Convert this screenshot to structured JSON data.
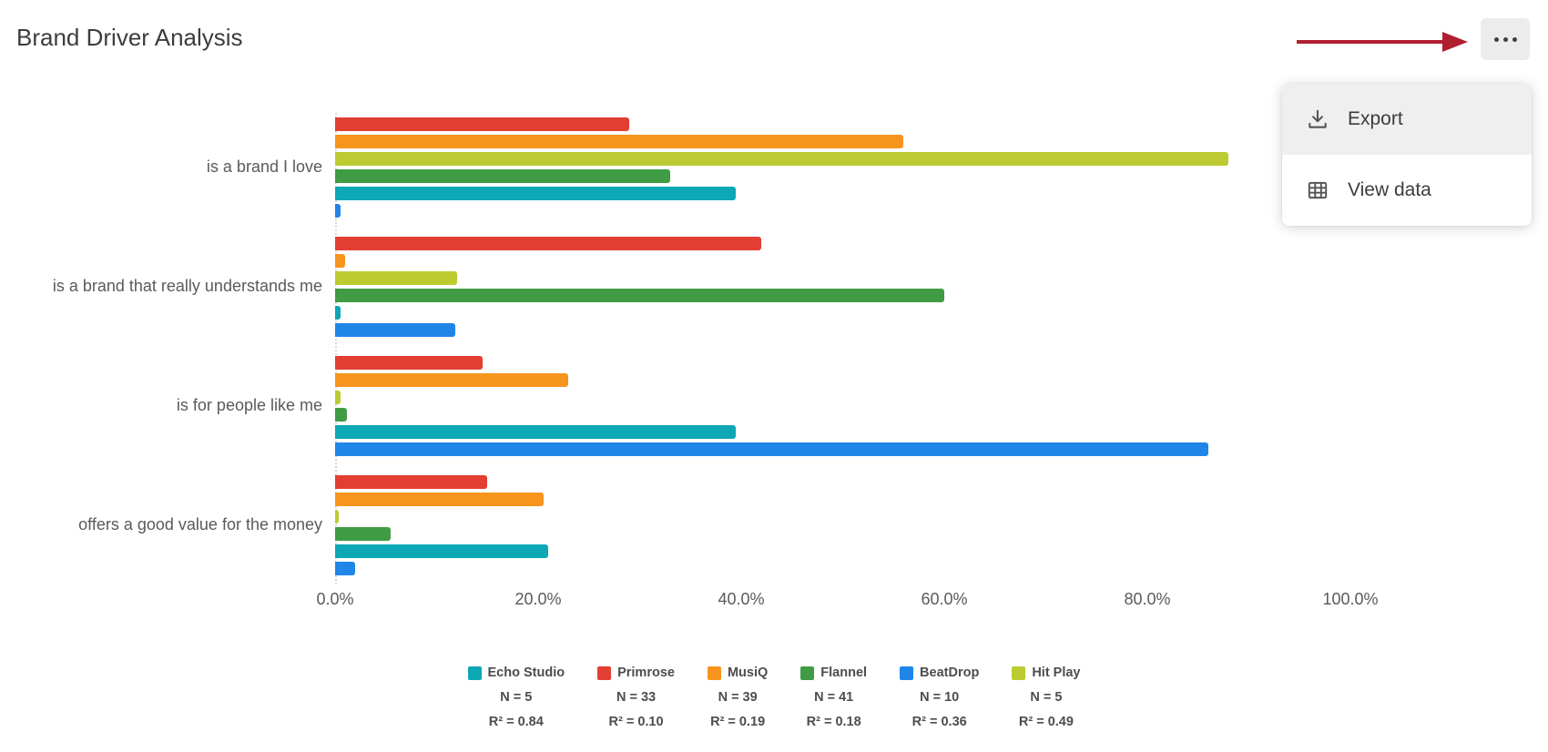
{
  "header": {
    "title": "Brand Driver Analysis"
  },
  "annotation_arrow": {
    "color": "#b01f30"
  },
  "dropdown": {
    "items": [
      {
        "label": "Export",
        "icon": "download-icon"
      },
      {
        "label": "View data",
        "icon": "table-icon"
      }
    ]
  },
  "chart_data": {
    "type": "bar",
    "orientation": "horizontal",
    "title": "Brand Driver Analysis",
    "categories": [
      "is a brand I love",
      "is a brand that really understands me",
      "is for people like me",
      "offers a good value for the money"
    ],
    "series": [
      {
        "name": "Echo Studio",
        "color": "#0ea7b5",
        "n_label": "N = 5",
        "r2_label": "R² = 0.84",
        "values": [
          39.5,
          0.5,
          39.5,
          21
        ]
      },
      {
        "name": "Primrose",
        "color": "#e23e32",
        "n_label": "N = 33",
        "r2_label": "R² = 0.10",
        "values": [
          29,
          42,
          14.5,
          15
        ]
      },
      {
        "name": "MusiQ",
        "color": "#f7941e",
        "n_label": "N = 39",
        "r2_label": "R² = 0.19",
        "values": [
          56,
          1,
          23,
          20.5
        ]
      },
      {
        "name": "Flannel",
        "color": "#3f9c44",
        "n_label": "N = 41",
        "r2_label": "R² = 0.18",
        "values": [
          33,
          60,
          1.2,
          5.5
        ]
      },
      {
        "name": "BeatDrop",
        "color": "#1f86e8",
        "n_label": "N = 10",
        "r2_label": "R² = 0.36",
        "values": [
          0.5,
          11.8,
          86,
          2
        ]
      },
      {
        "name": "Hit Play",
        "color": "#bccb31",
        "n_label": "N = 5",
        "r2_label": "R² = 0.49",
        "values": [
          88,
          12,
          0.5,
          0.3
        ]
      }
    ],
    "bar_order": [
      "Primrose",
      "MusiQ",
      "Hit Play",
      "Flannel",
      "Echo Studio",
      "BeatDrop"
    ],
    "x_ticks": [
      "0.0%",
      "20.0%",
      "40.0%",
      "60.0%",
      "80.0%",
      "100.0%"
    ],
    "xlim": [
      0,
      100
    ],
    "grid": false,
    "legend_position": "bottom"
  }
}
